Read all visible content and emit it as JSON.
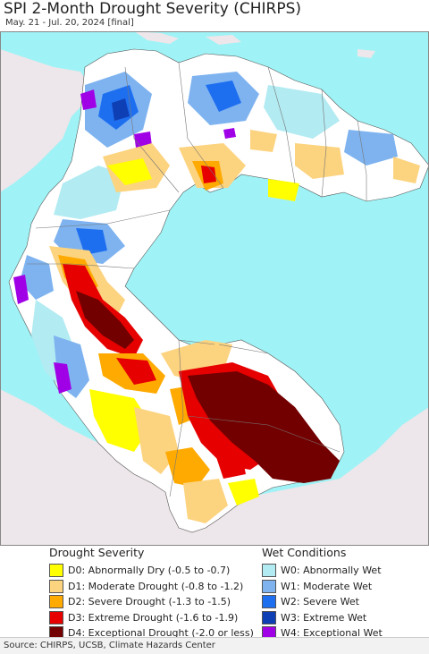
{
  "header": {
    "title": "SPI 2-Month Drought Severity (CHIRPS)",
    "subtitle": "May. 21 - Jul. 20, 2024 [final]"
  },
  "colors": {
    "ocean": "#9ff3f6",
    "neighbor_land": "#ede6ea",
    "normal_land": "#ffffff",
    "D0": "#ffff00",
    "D1": "#fcd37f",
    "D2": "#ffaa00",
    "D3": "#e60000",
    "D4": "#730000",
    "W0": "#b2ebf2",
    "W1": "#7eb3f0",
    "W2": "#1e6ff0",
    "W3": "#0f3fb4",
    "W4": "#a000e6"
  },
  "legend": {
    "drought": {
      "heading": "Drought Severity",
      "items": [
        {
          "code": "D0",
          "label": "D0: Abnormally Dry (-0.5 to -0.7)",
          "color": "#ffff00"
        },
        {
          "code": "D1",
          "label": "D1: Moderate Drought (-0.8 to -1.2)",
          "color": "#fcd37f"
        },
        {
          "code": "D2",
          "label": "D2: Severe Drought (-1.3 to -1.5)",
          "color": "#ffaa00"
        },
        {
          "code": "D3",
          "label": "D3: Extreme Drought (-1.6 to -1.9)",
          "color": "#e60000"
        },
        {
          "code": "D4",
          "label": "D4: Exceptional Drought (-2.0 or less)",
          "color": "#730000"
        }
      ]
    },
    "wet": {
      "heading": "Wet Conditions",
      "items": [
        {
          "code": "W0",
          "label": "W0: Abnormally Wet",
          "color": "#b2ebf2"
        },
        {
          "code": "W1",
          "label": "W1: Moderate Wet",
          "color": "#7eb3f0"
        },
        {
          "code": "W2",
          "label": "W2: Severe Wet",
          "color": "#1e6ff0"
        },
        {
          "code": "W3",
          "label": "W3: Extreme Wet",
          "color": "#0f3fb4"
        },
        {
          "code": "W4",
          "label": "W4: Exceptional Wet",
          "color": "#a000e6"
        }
      ]
    }
  },
  "footer": {
    "source": "Source: CHIRPS, UCSB, Climate Hazards Center"
  }
}
